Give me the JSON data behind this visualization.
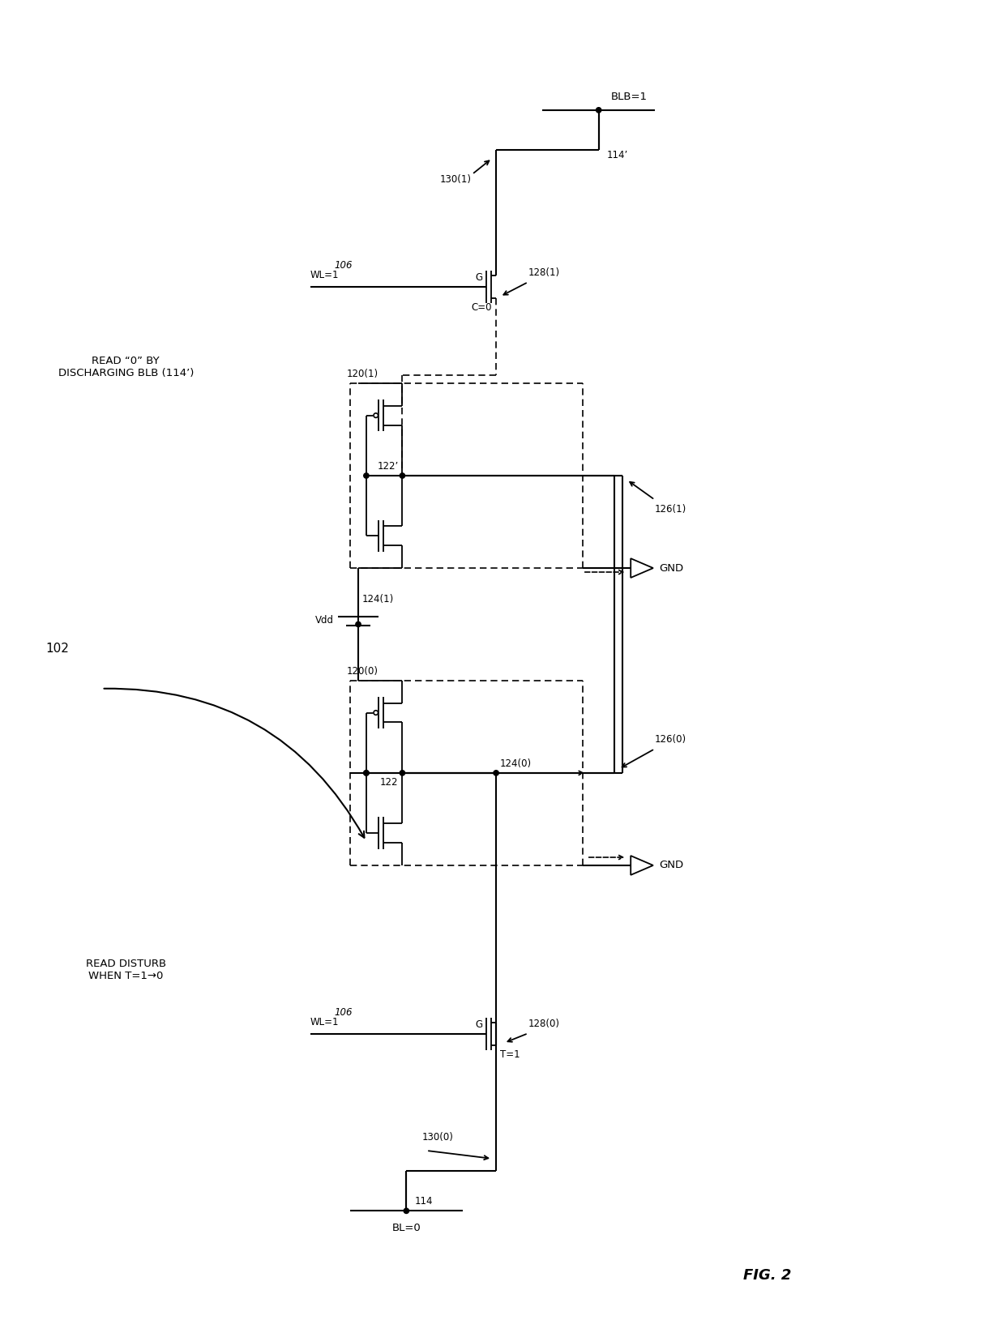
{
  "fig_label": "FIG. 2",
  "ref_102": "102",
  "background": "#ffffff",
  "ann_top": "READ “0” BY\nDISCHARGING BLB (114’)",
  "ann_bot": "READ DISTURB\nWHEN T=1→0",
  "label_BLB": "BLB=1",
  "label_BL": "BL=0",
  "label_114p": "114’",
  "label_114": "114",
  "label_Vdd": "Vdd",
  "label_WL1": "WL=1",
  "label_106": "106",
  "label_G": "G",
  "label_C0": "C=0",
  "label_T1": "T=1",
  "label_GND": "GND",
  "label_120_1": "120(1)",
  "label_120_0": "120(0)",
  "label_122p": "122’",
  "label_122": "122",
  "label_124_1": "124(1)",
  "label_124_0": "124(0)",
  "label_126_1": "126(1)",
  "label_126_0": "126(0)",
  "label_128_1": "128(1)",
  "label_128_0": "128(0)",
  "label_130_1": "130(1)",
  "label_130_0": "130(0)"
}
